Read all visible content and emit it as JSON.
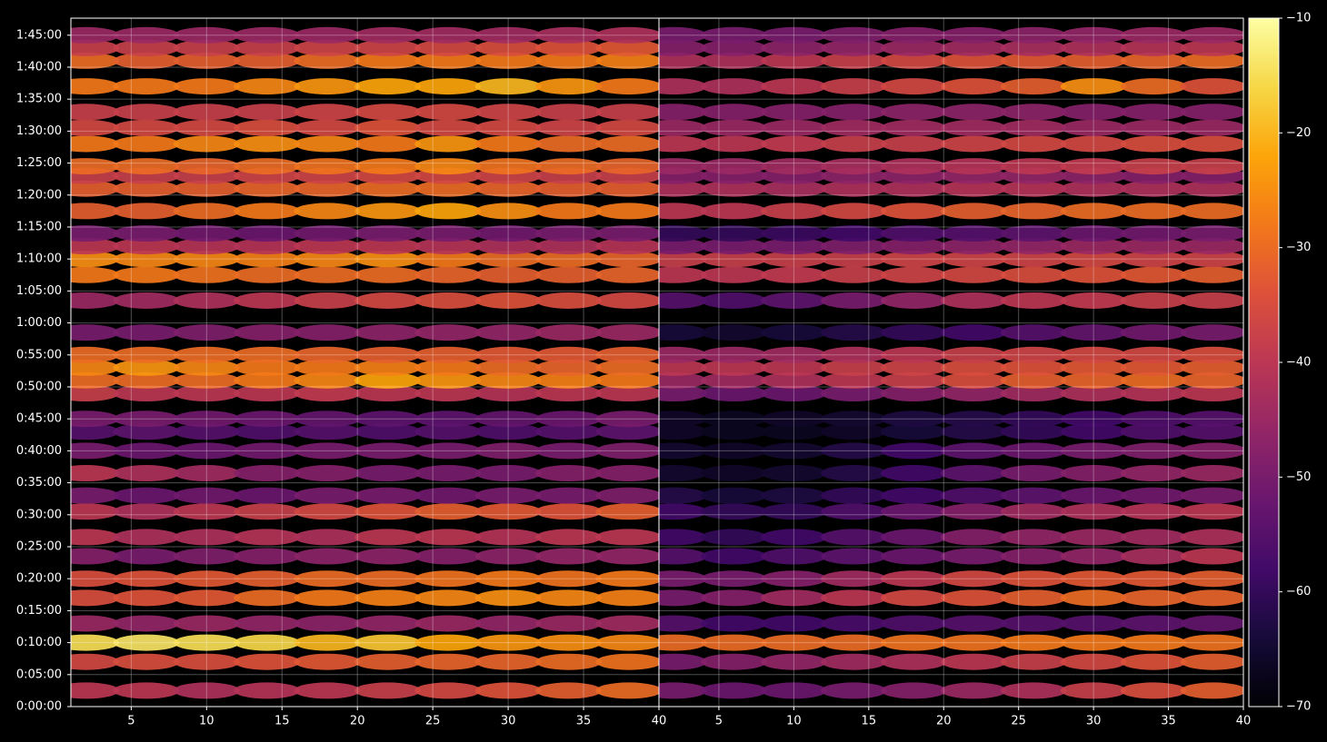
{
  "chart_data": {
    "type": "heatmap",
    "colormap": "inferno",
    "grid": true,
    "clim": [
      -70,
      -10
    ],
    "cticks": [
      {
        "value": -10,
        "label": "−10"
      },
      {
        "value": -20,
        "label": "−20"
      },
      {
        "value": -30,
        "label": "−30"
      },
      {
        "value": -40,
        "label": "−40"
      },
      {
        "value": -50,
        "label": "−50"
      },
      {
        "value": -60,
        "label": "−60"
      },
      {
        "value": -70,
        "label": "−70"
      }
    ],
    "ylim": [
      0,
      6460
    ],
    "yticks": [
      {
        "value": 0,
        "label": "0:00:00"
      },
      {
        "value": 300,
        "label": "0:05:00"
      },
      {
        "value": 600,
        "label": "0:10:00"
      },
      {
        "value": 900,
        "label": "0:15:00"
      },
      {
        "value": 1200,
        "label": "0:20:00"
      },
      {
        "value": 1500,
        "label": "0:25:00"
      },
      {
        "value": 1800,
        "label": "0:30:00"
      },
      {
        "value": 2100,
        "label": "0:35:00"
      },
      {
        "value": 2400,
        "label": "0:40:00"
      },
      {
        "value": 2700,
        "label": "0:45:00"
      },
      {
        "value": 3000,
        "label": "0:50:00"
      },
      {
        "value": 3300,
        "label": "0:55:00"
      },
      {
        "value": 3600,
        "label": "1:00:00"
      },
      {
        "value": 3900,
        "label": "1:05:00"
      },
      {
        "value": 4200,
        "label": "1:10:00"
      },
      {
        "value": 4500,
        "label": "1:15:00"
      },
      {
        "value": 4800,
        "label": "1:20:00"
      },
      {
        "value": 5100,
        "label": "1:25:00"
      },
      {
        "value": 5400,
        "label": "1:30:00"
      },
      {
        "value": 5700,
        "label": "1:35:00"
      },
      {
        "value": 6000,
        "label": "1:40:00"
      },
      {
        "value": 6300,
        "label": "1:45:00"
      }
    ],
    "y": [
      150,
      420,
      600,
      780,
      1020,
      1200,
      1410,
      1590,
      1830,
      1980,
      2190,
      2400,
      2580,
      2700,
      2940,
      3060,
      3180,
      3300,
      3510,
      3810,
      4050,
      4200,
      4320,
      4440,
      4650,
      4860,
      4980,
      5070,
      5280,
      5430,
      5580,
      5820,
      6060,
      6180,
      6300
    ],
    "panels": [
      {
        "xlim": [
          1,
          40
        ],
        "xticks": [
          5,
          10,
          15,
          20,
          25,
          30,
          35,
          40
        ],
        "x": [
          2,
          6,
          10,
          14,
          18,
          22,
          26,
          30,
          34,
          38
        ],
        "values": [
          [
            -40,
            -40,
            -42,
            -41,
            -40,
            -38,
            -36,
            -34,
            -32,
            -30
          ],
          [
            -36,
            -35,
            -35,
            -34,
            -33,
            -32,
            -31,
            -31,
            -30,
            -29
          ],
          [
            -15,
            -14,
            -15,
            -16,
            -20,
            -18,
            -22,
            -24,
            -25,
            -26
          ],
          [
            -45,
            -46,
            -45,
            -46,
            -47,
            -46,
            -45,
            -46,
            -45,
            -44
          ],
          [
            -35,
            -34,
            -33,
            -30,
            -28,
            -27,
            -26,
            -25,
            -26,
            -27
          ],
          [
            -35,
            -34,
            -33,
            -32,
            -30,
            -30,
            -29,
            -28,
            -29,
            -28
          ],
          [
            -48,
            -50,
            -49,
            -48,
            -47,
            -47,
            -48,
            -47,
            -46,
            -46
          ],
          [
            -40,
            -42,
            -42,
            -41,
            -42,
            -40,
            -40,
            -41,
            -40,
            -40
          ],
          [
            -40,
            -42,
            -40,
            -38,
            -36,
            -34,
            -32,
            -33,
            -34,
            -32
          ],
          [
            -50,
            -52,
            -51,
            -52,
            -50,
            -50,
            -51,
            -50,
            -50,
            -49
          ],
          [
            -40,
            -42,
            -44,
            -48,
            -48,
            -50,
            -50,
            -50,
            -48,
            -48
          ],
          [
            -50,
            -52,
            -52,
            -51,
            -50,
            -50,
            -50,
            -49,
            -50,
            -49
          ],
          [
            -55,
            -54,
            -55,
            -56,
            -55,
            -56,
            -55,
            -56,
            -55,
            -54
          ],
          [
            -50,
            -50,
            -51,
            -52,
            -53,
            -54,
            -54,
            -53,
            -52,
            -50
          ],
          [
            -38,
            -40,
            -40,
            -40,
            -39,
            -40,
            -40,
            -41,
            -40,
            -40
          ],
          [
            -30,
            -30,
            -30,
            -28,
            -26,
            -22,
            -24,
            -26,
            -27,
            -28
          ],
          [
            -26,
            -24,
            -26,
            -28,
            -28,
            -27,
            -28,
            -30,
            -31,
            -30
          ],
          [
            -30,
            -30,
            -30,
            -30,
            -31,
            -32,
            -32,
            -33,
            -33,
            -32
          ],
          [
            -50,
            -50,
            -49,
            -48,
            -48,
            -47,
            -46,
            -46,
            -45,
            -45
          ],
          [
            -45,
            -44,
            -42,
            -40,
            -38,
            -36,
            -35,
            -34,
            -35,
            -36
          ],
          [
            -28,
            -28,
            -29,
            -30,
            -30,
            -30,
            -31,
            -32,
            -32,
            -31
          ],
          [
            -25,
            -26,
            -26,
            -27,
            -26,
            -25,
            -28,
            -30,
            -30,
            -31
          ],
          [
            -40,
            -40,
            -41,
            -41,
            -40,
            -40,
            -41,
            -42,
            -42,
            -41
          ],
          [
            -50,
            -50,
            -51,
            -52,
            -51,
            -50,
            -50,
            -51,
            -50,
            -50
          ],
          [
            -32,
            -32,
            -30,
            -28,
            -26,
            -24,
            -22,
            -25,
            -28,
            -28
          ],
          [
            -32,
            -32,
            -32,
            -31,
            -31,
            -30,
            -30,
            -31,
            -32,
            -32
          ],
          [
            -38,
            -38,
            -38,
            -37,
            -37,
            -36,
            -36,
            -37,
            -38,
            -38
          ],
          [
            -30,
            -30,
            -31,
            -30,
            -29,
            -28,
            -26,
            -29,
            -30,
            -31
          ],
          [
            -28,
            -28,
            -26,
            -25,
            -26,
            -28,
            -24,
            -28,
            -30,
            -30
          ],
          [
            -36,
            -36,
            -36,
            -35,
            -36,
            -34,
            -36,
            -36,
            -37,
            -36
          ],
          [
            -38,
            -38,
            -38,
            -38,
            -37,
            -36,
            -36,
            -37,
            -38,
            -38
          ],
          [
            -28,
            -28,
            -28,
            -26,
            -24,
            -22,
            -22,
            -20,
            -24,
            -28
          ],
          [
            -30,
            -32,
            -32,
            -32,
            -30,
            -28,
            -28,
            -28,
            -28,
            -27
          ],
          [
            -38,
            -38,
            -38,
            -38,
            -37,
            -37,
            -36,
            -35,
            -34,
            -33
          ],
          [
            -45,
            -45,
            -45,
            -45,
            -45,
            -44,
            -44,
            -44,
            -43,
            -42
          ]
        ]
      },
      {
        "xlim": [
          1,
          40
        ],
        "xticks": [
          5,
          10,
          15,
          20,
          25,
          30,
          35,
          40
        ],
        "x": [
          2,
          6,
          10,
          14,
          18,
          22,
          26,
          30,
          34,
          38
        ],
        "values": [
          [
            -50,
            -52,
            -52,
            -50,
            -48,
            -45,
            -42,
            -38,
            -35,
            -32
          ],
          [
            -50,
            -48,
            -46,
            -44,
            -42,
            -40,
            -38,
            -36,
            -34,
            -32
          ],
          [
            -30,
            -30,
            -30,
            -30,
            -29,
            -29,
            -28,
            -28,
            -28,
            -29
          ],
          [
            -55,
            -58,
            -58,
            -57,
            -56,
            -55,
            -55,
            -55,
            -54,
            -53
          ],
          [
            -50,
            -48,
            -44,
            -40,
            -36,
            -34,
            -32,
            -30,
            -31,
            -31
          ],
          [
            -50,
            -50,
            -48,
            -44,
            -40,
            -36,
            -34,
            -33,
            -33,
            -32
          ],
          [
            -55,
            -58,
            -56,
            -54,
            -52,
            -50,
            -48,
            -46,
            -43,
            -40
          ],
          [
            -58,
            -60,
            -58,
            -55,
            -52,
            -48,
            -46,
            -45,
            -44,
            -42
          ],
          [
            -58,
            -60,
            -60,
            -56,
            -52,
            -48,
            -44,
            -42,
            -41,
            -40
          ],
          [
            -62,
            -64,
            -63,
            -60,
            -58,
            -56,
            -54,
            -52,
            -51,
            -50
          ],
          [
            -65,
            -66,
            -65,
            -62,
            -58,
            -54,
            -50,
            -48,
            -46,
            -45
          ],
          [
            -65,
            -66,
            -65,
            -62,
            -58,
            -54,
            -52,
            -50,
            -49,
            -48
          ],
          [
            -66,
            -67,
            -67,
            -66,
            -64,
            -62,
            -60,
            -58,
            -56,
            -55
          ],
          [
            -66,
            -67,
            -66,
            -65,
            -63,
            -62,
            -60,
            -58,
            -56,
            -55
          ],
          [
            -50,
            -52,
            -52,
            -50,
            -48,
            -46,
            -44,
            -42,
            -41,
            -40
          ],
          [
            -45,
            -44,
            -42,
            -40,
            -38,
            -35,
            -32,
            -31,
            -30,
            -31
          ],
          [
            -40,
            -40,
            -40,
            -38,
            -37,
            -35,
            -34,
            -33,
            -33,
            -32
          ],
          [
            -45,
            -45,
            -44,
            -42,
            -40,
            -38,
            -37,
            -36,
            -36,
            -35
          ],
          [
            -64,
            -65,
            -64,
            -62,
            -60,
            -58,
            -55,
            -53,
            -51,
            -50
          ],
          [
            -55,
            -56,
            -54,
            -50,
            -46,
            -42,
            -40,
            -39,
            -38,
            -38
          ],
          [
            -40,
            -40,
            -39,
            -38,
            -37,
            -36,
            -35,
            -34,
            -33,
            -32
          ],
          [
            -38,
            -38,
            -38,
            -38,
            -37,
            -37,
            -37,
            -36,
            -37,
            -37
          ],
          [
            -50,
            -50,
            -50,
            -49,
            -48,
            -47,
            -46,
            -45,
            -45,
            -45
          ],
          [
            -60,
            -60,
            -59,
            -58,
            -56,
            -55,
            -54,
            -52,
            -51,
            -50
          ],
          [
            -40,
            -40,
            -38,
            -36,
            -34,
            -32,
            -31,
            -30,
            -30,
            -30
          ],
          [
            -42,
            -42,
            -43,
            -42,
            -42,
            -41,
            -41,
            -42,
            -42,
            -42
          ],
          [
            -48,
            -48,
            -48,
            -47,
            -47,
            -46,
            -46,
            -47,
            -48,
            -48
          ],
          [
            -45,
            -45,
            -44,
            -43,
            -42,
            -41,
            -40,
            -39,
            -38,
            -38
          ],
          [
            -40,
            -40,
            -39,
            -38,
            -38,
            -37,
            -36,
            -36,
            -35,
            -35
          ],
          [
            -45,
            -45,
            -45,
            -44,
            -44,
            -44,
            -44,
            -45,
            -45,
            -45
          ],
          [
            -48,
            -48,
            -48,
            -48,
            -47,
            -47,
            -47,
            -48,
            -48,
            -48
          ],
          [
            -42,
            -42,
            -40,
            -38,
            -36,
            -34,
            -32,
            -25,
            -30,
            -34
          ],
          [
            -42,
            -42,
            -40,
            -38,
            -36,
            -34,
            -33,
            -32,
            -31,
            -30
          ],
          [
            -48,
            -48,
            -47,
            -46,
            -45,
            -44,
            -43,
            -42,
            -41,
            -40
          ],
          [
            -50,
            -50,
            -50,
            -49,
            -48,
            -48,
            -47,
            -46,
            -45,
            -45
          ]
        ]
      }
    ]
  }
}
